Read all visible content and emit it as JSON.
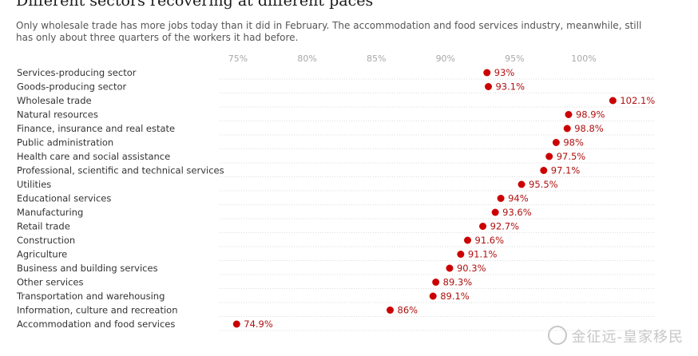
{
  "chart_data": {
    "type": "scatter",
    "title": "Different sectors recovering at different paces",
    "subtitle": "Only wholesale trade has more jobs today than it did in February. The accommodation and food services industry, meanwhile, still has only about three quarters of the workers it had before.",
    "xlabel": "",
    "ylabel": "",
    "xlim": [
      73,
      105
    ],
    "x_ticks": [
      75,
      80,
      85,
      90,
      95,
      100
    ],
    "x_tick_labels": [
      "75%",
      "80%",
      "85%",
      "90%",
      "95%",
      "100%"
    ],
    "grid": true,
    "point_color": "#cc0000",
    "categories": [
      "Services-producing sector",
      "Goods-producing sector",
      "Wholesale trade",
      "Natural resources",
      "Finance, insurance and real estate",
      "Public administration",
      "Health care and social assistance",
      "Professional, scientific and technical services",
      "Utilities",
      "Educational services",
      "Manufacturing",
      "Retail trade",
      "Construction",
      "Agriculture",
      "Business and building services",
      "Other services",
      "Transportation and warehousing",
      "Information, culture and recreation",
      "Accommodation and food services"
    ],
    "values": [
      93,
      93.1,
      102.1,
      98.9,
      98.8,
      98,
      97.5,
      97.1,
      95.5,
      94,
      93.6,
      92.7,
      91.6,
      91.1,
      90.3,
      89.3,
      89.1,
      86,
      74.9
    ],
    "value_labels": [
      "93%",
      "93.1%",
      "102.1%",
      "98.9%",
      "98.8%",
      "98%",
      "97.5%",
      "97.1%",
      "95.5%",
      "94%",
      "93.6%",
      "92.7%",
      "91.6%",
      "91.1%",
      "90.3%",
      "89.3%",
      "89.1%",
      "86%",
      "74.9%"
    ]
  },
  "watermark": {
    "text": "金征远-皇家移民"
  }
}
